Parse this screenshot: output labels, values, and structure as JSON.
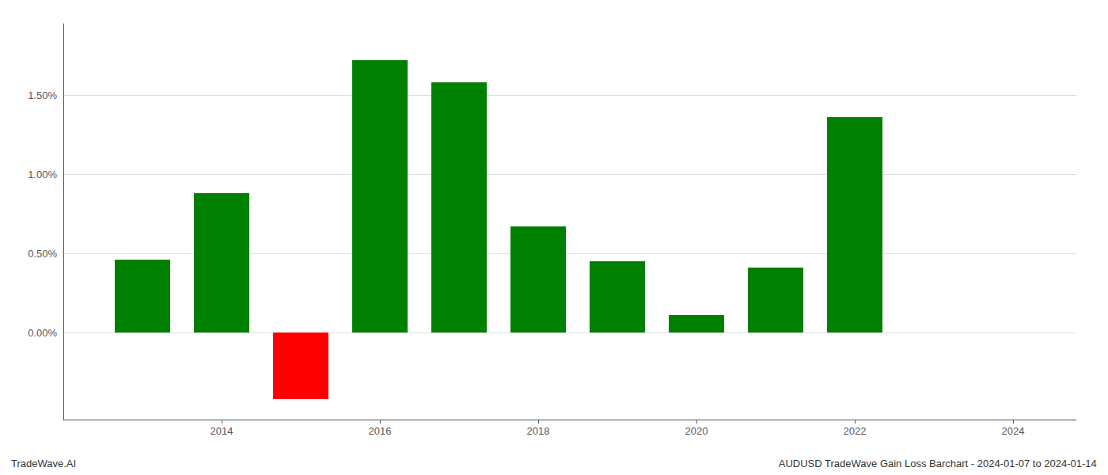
{
  "chart_data": {
    "type": "bar",
    "x": [
      2013,
      2014,
      2015,
      2016,
      2017,
      2018,
      2019,
      2020,
      2021,
      2022,
      2023
    ],
    "values": [
      0.0046,
      0.0088,
      -0.0042,
      0.0172,
      0.0158,
      0.0067,
      0.0045,
      0.0011,
      0.0041,
      0.0136,
      0.0
    ],
    "colors": [
      "#008000",
      "#008000",
      "#ff0000",
      "#008000",
      "#008000",
      "#008000",
      "#008000",
      "#008000",
      "#008000",
      "#008000",
      "#008000"
    ],
    "xlim": [
      2012.0,
      2024.8
    ],
    "xticks": [
      2014,
      2016,
      2018,
      2020,
      2022,
      2024
    ],
    "ylim": [
      -0.0055,
      0.0195
    ],
    "yticks": [
      {
        "value": 0.0,
        "label": "0.00%"
      },
      {
        "value": 0.005,
        "label": "0.50%"
      },
      {
        "value": 0.01,
        "label": "1.00%"
      },
      {
        "value": 0.015,
        "label": "1.50%"
      }
    ],
    "grid": true,
    "annotations": [
      "TradeWave.AI",
      "AUDUSD TradeWave Gain Loss Barchart - 2024-01-07 to 2024-01-14"
    ]
  }
}
